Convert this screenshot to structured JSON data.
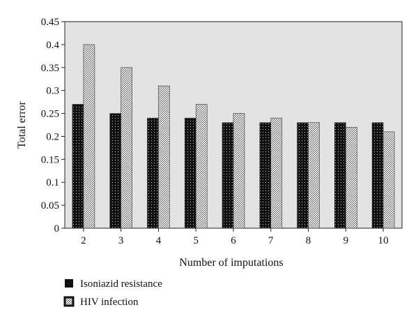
{
  "chart_data": {
    "type": "bar",
    "title": "",
    "xlabel": "Number of imputations",
    "ylabel": "Total error",
    "ylim": [
      0,
      0.45
    ],
    "yticks": [
      "0",
      "0.05",
      "0.1",
      "0.15",
      "0.2",
      "0.25",
      "0.3",
      "0.35",
      "0.4",
      "0.45"
    ],
    "categories": [
      "2",
      "3",
      "4",
      "5",
      "6",
      "7",
      "8",
      "9",
      "10"
    ],
    "grid": false,
    "legend_position": "bottom-left",
    "series": [
      {
        "name": "Isoniazid resistance",
        "values": [
          0.27,
          0.25,
          0.24,
          0.24,
          0.23,
          0.23,
          0.23,
          0.23,
          0.23
        ],
        "pattern": "dotted-black"
      },
      {
        "name": "HIV infection",
        "values": [
          0.4,
          0.35,
          0.31,
          0.27,
          0.25,
          0.24,
          0.23,
          0.22,
          0.21
        ],
        "pattern": "checker-gray"
      }
    ],
    "colors": {
      "plot_background": "#e3e3e3",
      "series1": "#111111",
      "series2": "#bdbdbd"
    }
  }
}
